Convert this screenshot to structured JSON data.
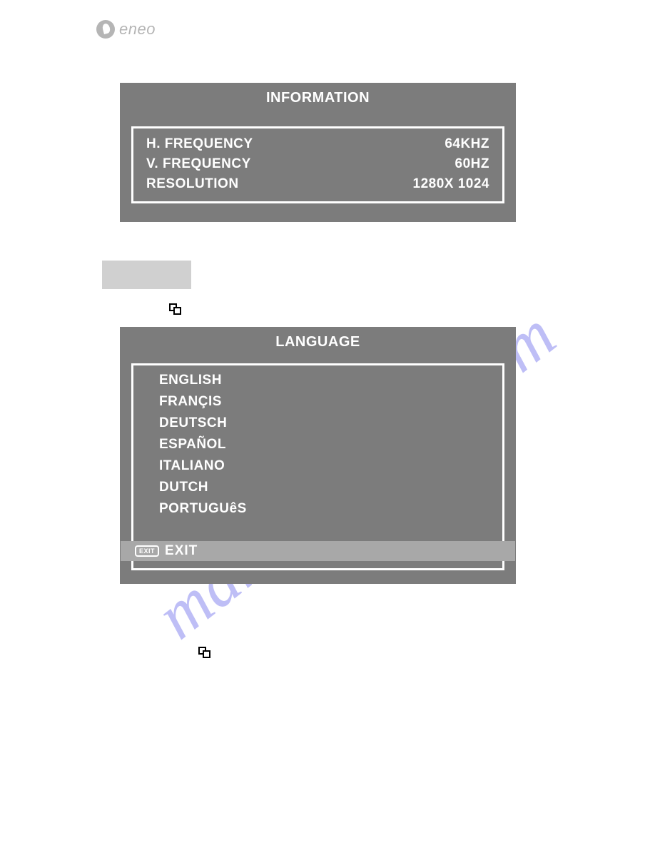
{
  "brand": {
    "name": "eneo"
  },
  "watermark": {
    "text": "manualshive.com",
    "color": "#8a8af0"
  },
  "palette": {
    "panel_bg": "#7c7c7c",
    "panel_text": "#ffffff",
    "highlight_bg": "#a8a8a8",
    "page_bg": "#ffffff",
    "grey_block": "#d0d0d0"
  },
  "info_panel": {
    "title": "INFORMATION",
    "rows": [
      {
        "label": "H. FREQUENCY",
        "value": "64KHZ"
      },
      {
        "label": "V. FREQUENCY",
        "value": "60HZ"
      },
      {
        "label": "RESOLUTION",
        "value": "1280X 1024"
      }
    ]
  },
  "language_panel": {
    "title": "LANGUAGE",
    "items": [
      "ENGLISH",
      "FRANÇIS",
      "DEUTSCH",
      "ESPAÑOL",
      "ITALIANO",
      "DUTCH",
      "PORTUGUêS"
    ],
    "exit_badge": "EXIT",
    "exit_label": "EXIT"
  }
}
